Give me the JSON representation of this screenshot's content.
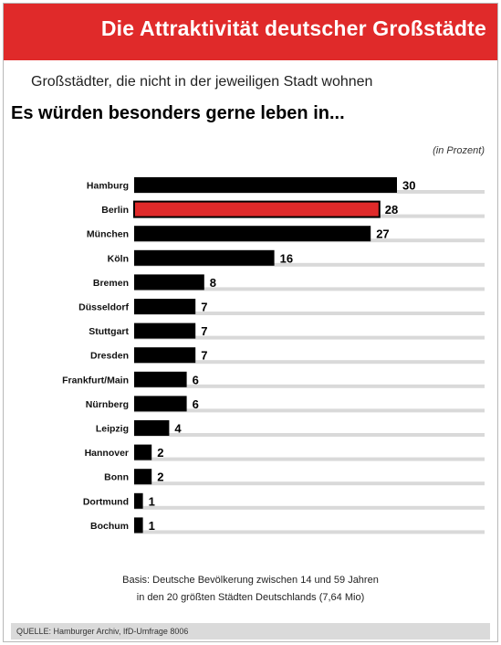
{
  "header": {
    "title": "Die Attraktivität deutscher Großstädte",
    "subtitle": "Großstädter, die nicht in der jeweiligen Stadt wohnen",
    "headline": "Es würden besonders gerne leben in...",
    "unit": "(in Prozent)"
  },
  "footer": {
    "basis_line1": "Basis: Deutsche Bevölkerung zwischen 14 und 59 Jahren",
    "basis_line2": "in den 20 größten Städten Deutschlands (7,64 Mio)",
    "source": "QUELLE: Hamburger Archiv, IfD-Umfrage 8006"
  },
  "colors": {
    "banner": "#e02a2a",
    "bar": "#000000",
    "highlight_bar": "#e02a2a",
    "track": "#d9d9d9"
  },
  "chart_data": {
    "type": "bar",
    "orientation": "horizontal",
    "categories": [
      "Hamburg",
      "Berlin",
      "München",
      "Köln",
      "Bremen",
      "Düsseldorf",
      "Stuttgart",
      "Dresden",
      "Frankfurt/Main",
      "Nürnberg",
      "Leipzig",
      "Hannover",
      "Bonn",
      "Dortmund",
      "Bochum"
    ],
    "values": [
      30,
      28,
      27,
      16,
      8,
      7,
      7,
      7,
      6,
      6,
      4,
      2,
      2,
      1,
      1
    ],
    "highlight": "Berlin",
    "xlim": [
      0,
      40
    ],
    "unit": "(in Prozent)"
  }
}
